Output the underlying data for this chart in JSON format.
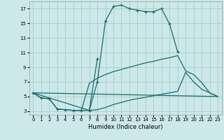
{
  "xlabel": "Humidex (Indice chaleur)",
  "bg_color": "#cce8e8",
  "line_color": "#1a6b6b",
  "grid_color": "#aacccc",
  "xlim": [
    -0.5,
    23.5
  ],
  "ylim": [
    2.5,
    18.0
  ],
  "xticks": [
    0,
    1,
    2,
    3,
    4,
    5,
    6,
    7,
    8,
    9,
    10,
    11,
    12,
    13,
    14,
    15,
    16,
    17,
    18,
    19,
    20,
    21,
    22,
    23
  ],
  "yticks": [
    3,
    5,
    7,
    9,
    11,
    13,
    15,
    17
  ],
  "lines": [
    {
      "x": [
        0,
        1,
        2,
        3,
        4,
        5,
        6,
        7,
        8,
        9,
        10,
        11,
        12,
        13,
        14,
        15,
        16,
        17,
        18
      ],
      "y": [
        5.5,
        4.8,
        4.7,
        3.3,
        3.2,
        3.1,
        3.1,
        3.1,
        7.0,
        15.3,
        17.3,
        17.5,
        17.0,
        16.8,
        16.6,
        16.6,
        17.0,
        14.9,
        11.1
      ],
      "marker": true
    },
    {
      "x": [
        0,
        1,
        2,
        3,
        4,
        5,
        6,
        7,
        8,
        9,
        10,
        11,
        12,
        13,
        14,
        15,
        16,
        17,
        18,
        19,
        20,
        21,
        22,
        23
      ],
      "y": [
        5.5,
        4.8,
        4.7,
        3.3,
        3.2,
        3.1,
        3.1,
        6.8,
        7.5,
        8.0,
        8.4,
        8.7,
        9.0,
        9.3,
        9.6,
        9.8,
        10.1,
        10.3,
        10.6,
        8.5,
        8.0,
        6.9,
        5.5,
        5.0
      ],
      "marker": false
    },
    {
      "x": [
        0,
        7,
        8,
        9,
        10,
        11,
        12,
        13,
        14,
        15,
        16,
        17,
        18,
        19,
        20,
        21,
        22,
        23
      ],
      "y": [
        5.5,
        3.1,
        3.2,
        3.5,
        3.9,
        4.2,
        4.5,
        4.7,
        4.9,
        5.1,
        5.3,
        5.5,
        5.7,
        8.3,
        7.0,
        6.0,
        5.5,
        5.0
      ],
      "marker": false
    },
    {
      "x": [
        0,
        23
      ],
      "y": [
        5.5,
        5.0
      ],
      "marker": false
    },
    {
      "x": [
        7,
        8
      ],
      "y": [
        3.1,
        10.2
      ],
      "marker": true
    }
  ]
}
